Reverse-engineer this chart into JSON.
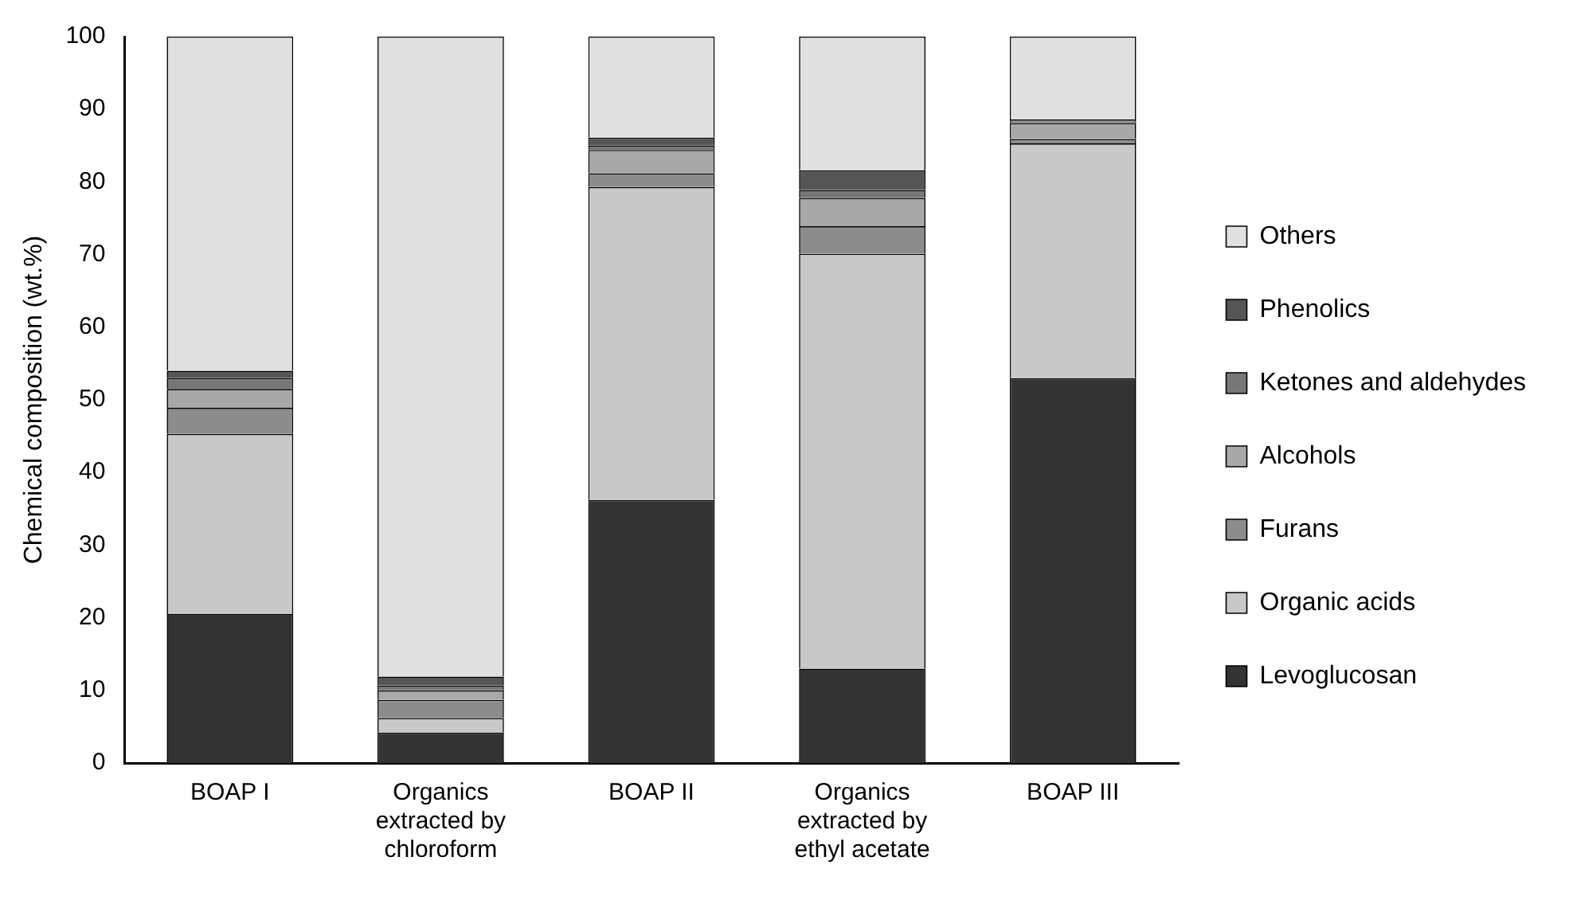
{
  "chart_data": {
    "type": "bar",
    "stacked": true,
    "ylabel": "Chemical composition (wt.%)",
    "categories": [
      "BOAP I",
      "Organics extracted by chloroform",
      "BOAP II",
      "Organics extracted by ethyl acetate",
      "BOAP III"
    ],
    "series": [
      {
        "name": "Levoglucosan",
        "color": "#333333",
        "values": [
          20.5,
          4.2,
          36.2,
          13.0,
          53.0
        ]
      },
      {
        "name": "Organic acids",
        "color": "#c8c8c8",
        "values": [
          24.8,
          2.0,
          43.1,
          57.1,
          32.3
        ]
      },
      {
        "name": "Furans",
        "color": "#8c8c8c",
        "values": [
          3.6,
          2.5,
          1.9,
          3.8,
          0.6
        ]
      },
      {
        "name": "Alcohols",
        "color": "#a8a8a8",
        "values": [
          2.6,
          1.3,
          3.2,
          3.9,
          2.2
        ]
      },
      {
        "name": "Ketones and aldehydes",
        "color": "#777777",
        "values": [
          1.5,
          0.7,
          0.6,
          1.1,
          0.2
        ]
      },
      {
        "name": "Phenolics",
        "color": "#555555",
        "values": [
          1.0,
          1.2,
          1.1,
          2.7,
          0.3
        ]
      },
      {
        "name": "Others",
        "color": "#e0e0e0",
        "values": [
          46.0,
          88.1,
          13.9,
          18.4,
          11.4
        ]
      }
    ],
    "ylim": [
      0,
      100
    ],
    "yticks": [
      0,
      10,
      20,
      30,
      40,
      50,
      60,
      70,
      80,
      90,
      100
    ],
    "grid": false,
    "legend": "right"
  }
}
